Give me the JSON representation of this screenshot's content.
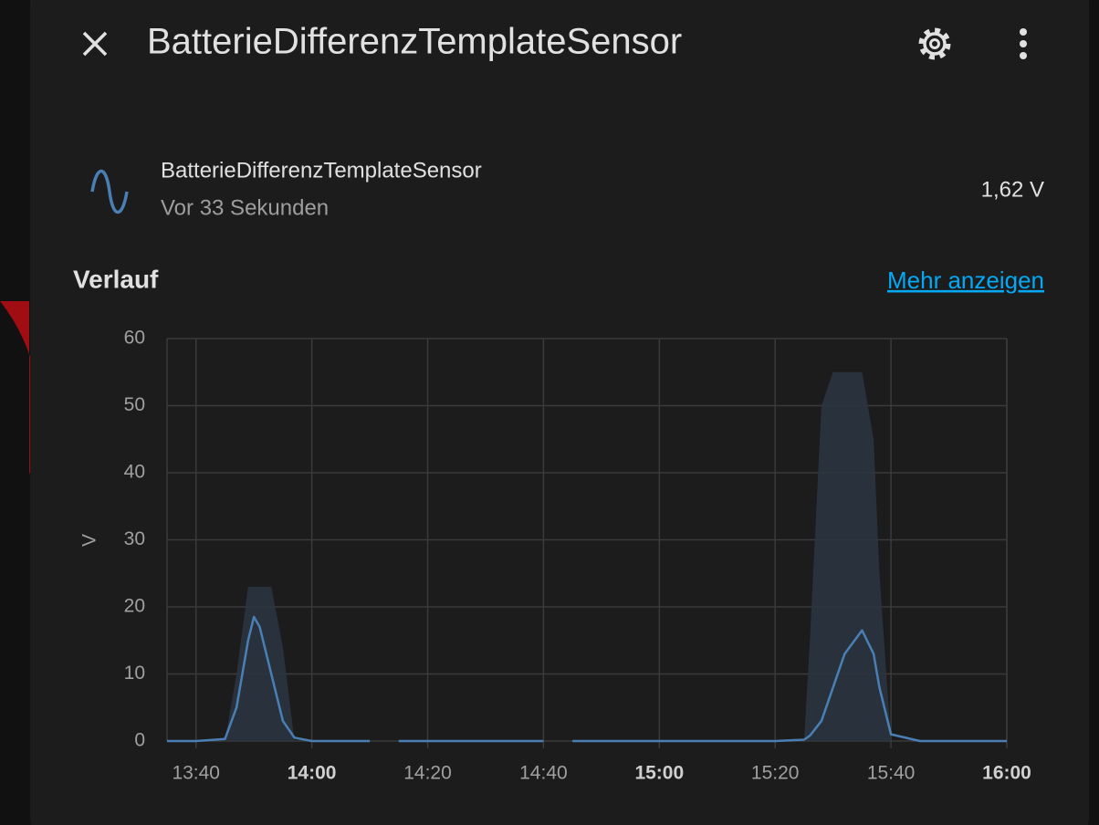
{
  "header": {
    "title": "BatterieDifferenzTemplateSensor"
  },
  "entity": {
    "name": "BatterieDifferenzTemplateSensor",
    "last_changed": "Vor 33 Sekunden",
    "state": "1,62 V"
  },
  "history": {
    "heading": "Verlauf",
    "link": "Mehr anzeigen"
  },
  "chart_data": {
    "type": "line",
    "ylabel": "V",
    "x": [
      815,
      820,
      825,
      827,
      829,
      830,
      831,
      833,
      835,
      837,
      840,
      845,
      850,
      852,
      855,
      880,
      882,
      885,
      920,
      925,
      926,
      928,
      930,
      932,
      935,
      937,
      938,
      940,
      945,
      950,
      955,
      960
    ],
    "series": [
      {
        "color": "#4a7fb5",
        "values": [
          0,
          0,
          0.3,
          5,
          15,
          18.5,
          17,
          10,
          3,
          0.5,
          0,
          0,
          0,
          null,
          0,
          0,
          null,
          0,
          0,
          0.2,
          0.8,
          3,
          8,
          13,
          16.5,
          13,
          8,
          1,
          0,
          0,
          0,
          0
        ]
      },
      {
        "type": "area",
        "color": "#2b3540",
        "values": [
          0,
          0,
          0,
          10,
          23,
          23,
          23,
          23,
          14,
          0,
          0,
          0,
          0,
          null,
          0,
          0,
          null,
          0,
          0,
          0,
          15,
          50,
          55,
          55,
          55,
          45,
          25,
          0,
          0,
          0,
          0,
          0
        ]
      }
    ],
    "xlim": [
      815,
      960
    ],
    "xticks": [
      {
        "value": 820,
        "label": "13:40"
      },
      {
        "value": 840,
        "label": "14:00"
      },
      {
        "value": 860,
        "label": "14:20"
      },
      {
        "value": 880,
        "label": "14:40"
      },
      {
        "value": 900,
        "label": "15:00"
      },
      {
        "value": 920,
        "label": "15:20"
      },
      {
        "value": 940,
        "label": "15:40"
      },
      {
        "value": 960,
        "label": "16:00"
      }
    ],
    "ylim": [
      0,
      60
    ],
    "yticks": [
      0,
      10,
      20,
      30,
      40,
      50,
      60
    ],
    "grid": true
  }
}
